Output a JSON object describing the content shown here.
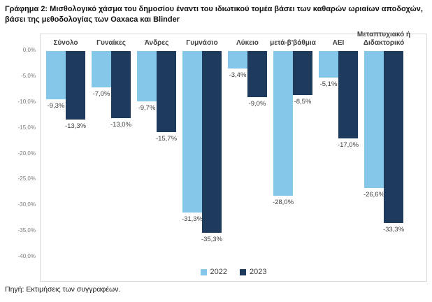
{
  "title": "Γράφημα 2: Μισθολογικό χάσμα του δημοσίου έναντι του ιδιωτικού τομέα βάσει των καθαρών ωριαίων αποδοχών, βάσει της μεθοδολογίας των Oaxaca και Blinder",
  "source": "Πηγή: Εκτιμήσεις των συγγραφέων.",
  "chart_data": {
    "type": "bar",
    "title": "Γράφημα 2: Μισθολογικό χάσμα του δημοσίου έναντι του ιδιωτικού τομέα βάσει των καθαρών ωριαίων αποδοχών, βάσει της μεθοδολογίας των Oaxaca και Blinder",
    "xlabel": "",
    "ylabel": "",
    "grid": false,
    "legend_position": "bottom",
    "ylim": [
      0,
      -40
    ],
    "y_ticks": [
      "0,0%",
      "-5,0%",
      "-10,0%",
      "-15,0%",
      "-20,0%",
      "-25,0%",
      "-30,0%",
      "-35,0%",
      "-40,0%"
    ],
    "categories": [
      "Σύνολο",
      "Γυναίκες",
      "Άνδρες",
      "Γυμνάσιο",
      "Λύκειο",
      "μετά-β'βάθμια",
      "ΑΕΙ",
      "Μεταπτυχιακό ή Διδακτορικό"
    ],
    "series": [
      {
        "name": "2022",
        "color": "#85C7E8",
        "values": [
          -9.3,
          -7.0,
          -9.7,
          -31.3,
          -3.4,
          -28.0,
          -5.1,
          -26.6
        ],
        "labels": [
          "-9,3%",
          "-7,0%",
          "-9,7%",
          "-31,3%",
          "-3,4%",
          "-28,0%",
          "-5,1%",
          "-26,6%"
        ]
      },
      {
        "name": "2023",
        "color": "#1E3A5C",
        "values": [
          -13.3,
          -13.0,
          -15.7,
          -35.3,
          -9.0,
          -8.5,
          -17.0,
          -33.3
        ],
        "labels": [
          "-13,3%",
          "-13,0%",
          "-15,7%",
          "-35,3%",
          "-9,0%",
          "-8,5%",
          "-17,0%",
          "-33,3%"
        ]
      }
    ]
  }
}
